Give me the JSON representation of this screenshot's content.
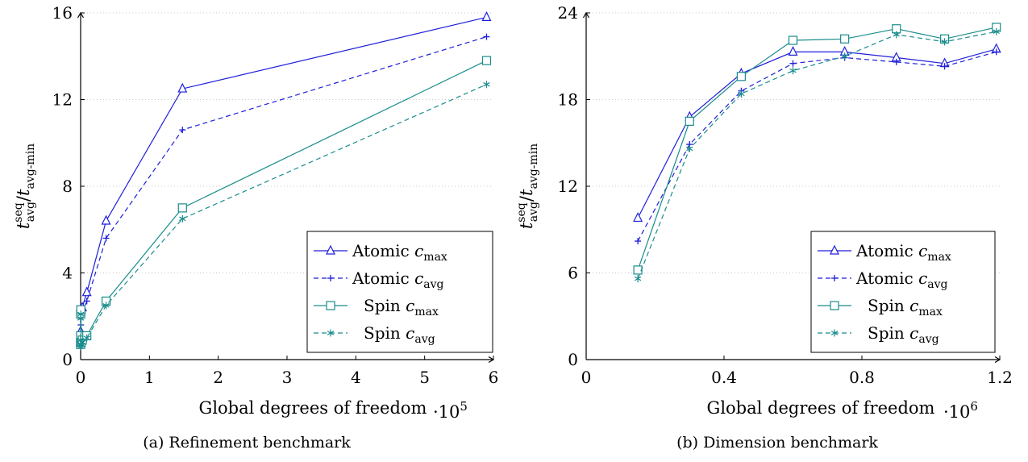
{
  "chart_data": [
    {
      "type": "line",
      "caption": "(a) Refinement benchmark",
      "xlabel": "Global degrees of freedom",
      "x_multiplier": "·10",
      "x_multiplier_exp": "5",
      "ylabel": "t_avg^seq / t_avg-min",
      "xlim": [
        0,
        6
      ],
      "ylim": [
        0,
        16
      ],
      "xticks": [
        0,
        1,
        2,
        3,
        4,
        5,
        6
      ],
      "yticks": [
        0,
        4,
        8,
        12,
        16
      ],
      "grid": "horizontal-dotted",
      "legend_position": "bottom-right",
      "series": [
        {
          "name": "Atomic",
          "sub": "max",
          "color": "#1f1fdc",
          "dash": "solid",
          "marker": "triangle",
          "x": [
            0.0,
            0.0,
            0.0,
            0.0,
            0.003,
            0.008,
            0.024,
            0.09,
            0.37,
            1.48,
            5.9
          ],
          "y": [
            0.7,
            0.8,
            1.0,
            1.3,
            2.2,
            2.3,
            2.4,
            3.1,
            6.4,
            12.5,
            15.8
          ]
        },
        {
          "name": "Atomic",
          "sub": "avg",
          "color": "#1f1fdc",
          "dash": "dashed",
          "marker": "plus",
          "x": [
            0.0,
            0.0,
            0.0,
            0.0,
            0.003,
            0.008,
            0.024,
            0.09,
            0.37,
            1.48,
            5.9
          ],
          "y": [
            0.6,
            0.7,
            0.9,
            1.1,
            1.6,
            2.0,
            2.2,
            2.7,
            5.6,
            10.6,
            14.9
          ]
        },
        {
          "name": "Spin",
          "sub": "max",
          "color": "#1a8c8c",
          "dash": "solid",
          "marker": "square",
          "x": [
            0.0,
            0.0,
            0.0,
            0.0,
            0.003,
            0.008,
            0.024,
            0.09,
            0.37,
            1.48,
            5.9
          ],
          "y": [
            0.7,
            0.8,
            1.1,
            2.1,
            2.3,
            0.8,
            0.9,
            1.1,
            2.7,
            7.0,
            13.8
          ]
        },
        {
          "name": "Spin",
          "sub": "avg",
          "color": "#1a8c8c",
          "dash": "dashed",
          "marker": "star",
          "x": [
            0.0,
            0.0,
            0.0,
            0.0,
            0.003,
            0.008,
            0.024,
            0.09,
            0.37,
            1.48,
            5.9
          ],
          "y": [
            0.6,
            0.7,
            0.9,
            1.9,
            2.1,
            0.7,
            0.8,
            1.0,
            2.5,
            6.5,
            12.7
          ]
        }
      ]
    },
    {
      "type": "line",
      "caption": "(b) Dimension benchmark",
      "xlabel": "Global degrees of freedom",
      "x_multiplier": "·10",
      "x_multiplier_exp": "6",
      "ylabel": "t_avg^seq / t_avg-min",
      "xlim": [
        0,
        1.2
      ],
      "ylim": [
        0,
        24
      ],
      "xticks": [
        0,
        0.4,
        0.8,
        1.2
      ],
      "yticks": [
        0,
        6,
        12,
        18,
        24
      ],
      "grid": "horizontal-dotted",
      "legend_position": "bottom-right",
      "series": [
        {
          "name": "Atomic",
          "sub": "max",
          "color": "#1f1fdc",
          "dash": "solid",
          "marker": "triangle",
          "x": [
            0.15,
            0.3,
            0.45,
            0.6,
            0.75,
            0.9,
            1.04,
            1.19
          ],
          "y": [
            9.8,
            16.8,
            19.8,
            21.3,
            21.3,
            20.9,
            20.5,
            21.5
          ]
        },
        {
          "name": "Atomic",
          "sub": "avg",
          "color": "#1f1fdc",
          "dash": "dashed",
          "marker": "plus",
          "x": [
            0.15,
            0.3,
            0.45,
            0.6,
            0.75,
            0.9,
            1.04,
            1.19
          ],
          "y": [
            8.2,
            14.9,
            18.6,
            20.5,
            20.9,
            20.6,
            20.3,
            21.3
          ]
        },
        {
          "name": "Spin",
          "sub": "max",
          "color": "#1a8c8c",
          "dash": "solid",
          "marker": "square",
          "x": [
            0.15,
            0.3,
            0.45,
            0.6,
            0.75,
            0.9,
            1.04,
            1.19
          ],
          "y": [
            6.2,
            16.5,
            19.6,
            22.1,
            22.2,
            22.9,
            22.2,
            23.0
          ]
        },
        {
          "name": "Spin",
          "sub": "avg",
          "color": "#1a8c8c",
          "dash": "dashed",
          "marker": "star",
          "x": [
            0.15,
            0.3,
            0.45,
            0.6,
            0.75,
            0.9,
            1.04,
            1.19
          ],
          "y": [
            5.6,
            14.6,
            18.4,
            20.0,
            21.0,
            22.5,
            22.0,
            22.7
          ]
        }
      ]
    }
  ]
}
